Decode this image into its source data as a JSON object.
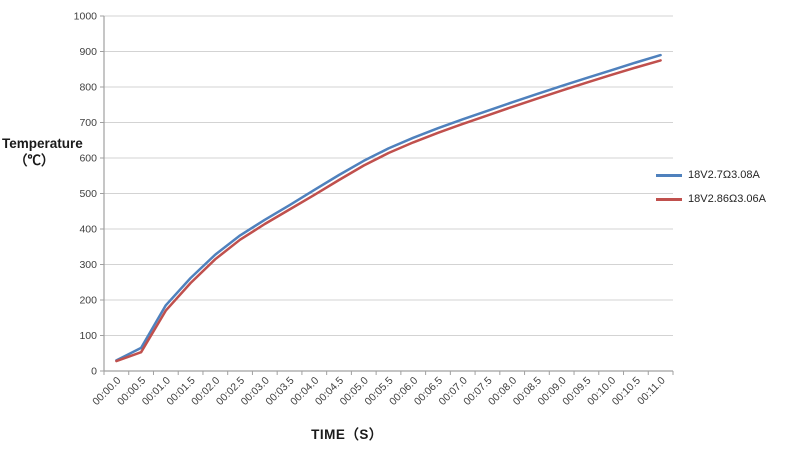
{
  "chart_data": {
    "type": "line",
    "title": "",
    "xlabel": "TIME（S）",
    "ylabel_line1": "Temperature",
    "ylabel_line2": "（℃）",
    "x_tick_rotation_deg": -45,
    "grid": "horizontal",
    "legend_position": "right",
    "y_axis": {
      "min": 0,
      "max": 1000,
      "step": 100,
      "ticks": [
        "0",
        "100",
        "200",
        "300",
        "400",
        "500",
        "600",
        "700",
        "800",
        "900",
        "1000"
      ]
    },
    "categories": [
      "00:00.0",
      "00:00.5",
      "00:01.0",
      "00:01.5",
      "00:02.0",
      "00:02.5",
      "00:03.0",
      "00:03.5",
      "00:04.0",
      "00:04.5",
      "00:05.0",
      "00:05.5",
      "00:06.0",
      "00:06.5",
      "00:07.0",
      "00:07.5",
      "00:08.0",
      "00:08.5",
      "00:09.0",
      "00:09.5",
      "00:10.0",
      "00:10.5",
      "00:11.0"
    ],
    "series": [
      {
        "name": "18V2.7Ω3.08A",
        "color": "#4F81BD",
        "values": [
          30,
          65,
          185,
          262,
          328,
          382,
          426,
          467,
          510,
          552,
          592,
          627,
          657,
          684,
          709,
          733,
          757,
          780,
          803,
          825,
          847,
          869,
          890
        ]
      },
      {
        "name": "18V2.86Ω3.06A",
        "color": "#C0504D",
        "values": [
          28,
          53,
          170,
          248,
          315,
          370,
          414,
          455,
          496,
          538,
          579,
          614,
          644,
          671,
          696,
          720,
          744,
          767,
          790,
          812,
          834,
          855,
          875
        ]
      }
    ]
  },
  "colors": {
    "gridline": "#D3D3D3",
    "axis": "#A0A0A0",
    "tick_text": "#3F3F3F",
    "background": "#FFFFFF"
  }
}
